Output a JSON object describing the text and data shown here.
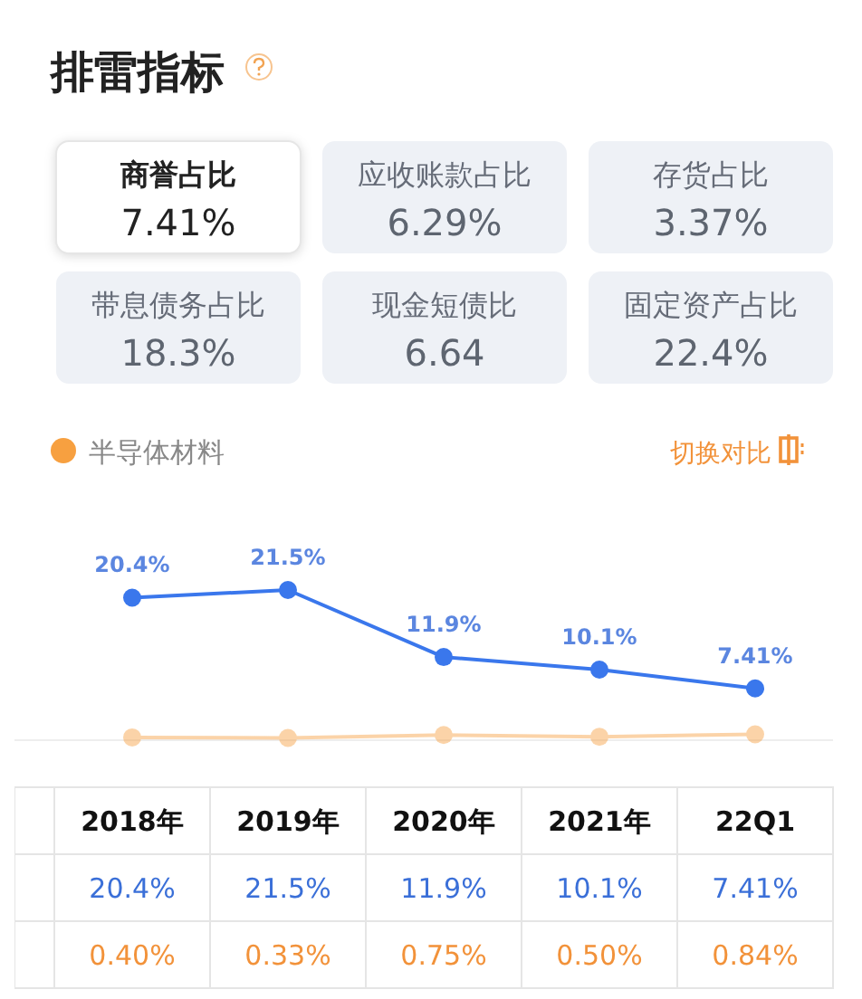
{
  "chart_data": [
    {
      "type": "other",
      "title": "排雷指标",
      "annotations": [
        "商誉占比",
        "7.41%",
        "应收账款占比",
        "6.29%",
        "存货占比",
        "3.37%",
        "带息债务占比",
        "18.3%",
        "现金短债比",
        "6.64",
        "固定资产占比",
        "22.4%"
      ]
    },
    {
      "type": "line",
      "categories": [
        "2018年",
        "2019年",
        "2020年",
        "2021年",
        "22Q1"
      ],
      "marker": "circle",
      "legend": "top left",
      "annotations": [
        "切换对比"
      ],
      "series": [
        {
          "color": "#3a77ec",
          "values": [
            20.4,
            21.5,
            11.9,
            10.1,
            7.41
          ],
          "value_labels": [
            "20.4%",
            "21.5%",
            "11.9%",
            "10.1%",
            "7.41%"
          ]
        },
        {
          "name": "半导体材料",
          "color": "#f7a040",
          "values": [
            0.4,
            0.33,
            0.75,
            0.5,
            0.84
          ],
          "value_labels": [
            "0.40%",
            "0.33%",
            "0.75%",
            "0.50%",
            "0.84%"
          ]
        }
      ]
    }
  ]
}
